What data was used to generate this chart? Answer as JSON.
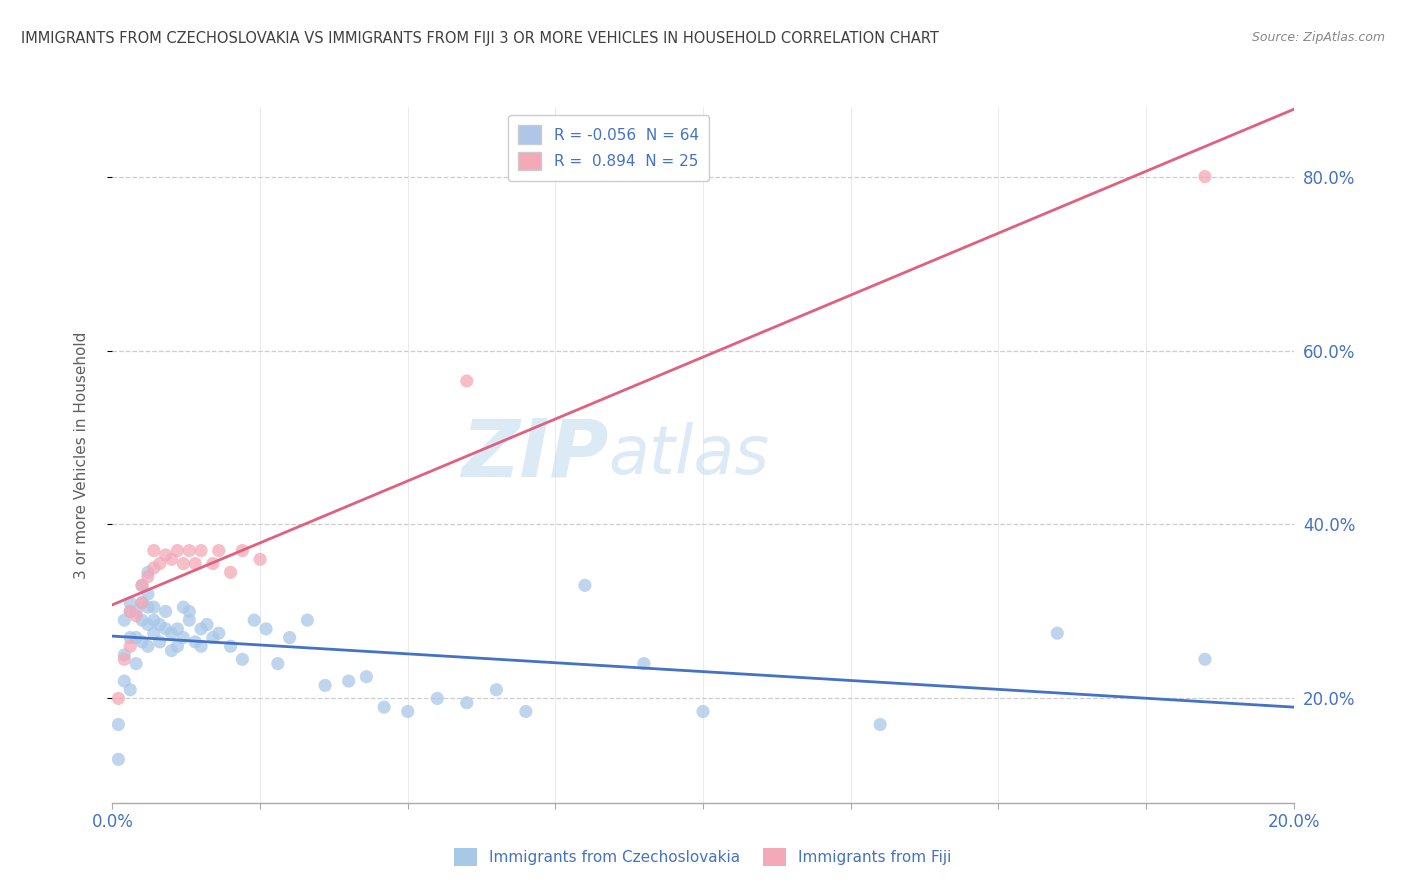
{
  "title": "IMMIGRANTS FROM CZECHOSLOVAKIA VS IMMIGRANTS FROM FIJI 3 OR MORE VEHICLES IN HOUSEHOLD CORRELATION CHART",
  "source": "Source: ZipAtlas.com",
  "ylabel": "3 or more Vehicles in Household",
  "xmin": 0.0,
  "xmax": 0.2,
  "ymin": 0.08,
  "ymax": 0.88,
  "yticks": [
    0.2,
    0.4,
    0.6,
    0.8
  ],
  "ytick_labels": [
    "20.0%",
    "40.0%",
    "60.0%",
    "80.0%"
  ],
  "xticks": [
    0.0,
    0.025,
    0.05,
    0.075,
    0.1,
    0.125,
    0.15,
    0.175,
    0.2
  ],
  "legend_entries": [
    {
      "label": "R = -0.056  N = 64",
      "color": "#aec6e8"
    },
    {
      "label": "R =  0.894  N = 25",
      "color": "#f4a9b8"
    }
  ],
  "dot_color_czechoslovakia": "#a8c8e8",
  "dot_color_fiji": "#f4a8b8",
  "line_color_czechoslovakia": "#4472c4",
  "line_color_fiji": "#e06080",
  "watermark_zip": "ZIP",
  "watermark_atlas": "atlas",
  "background_color": "#ffffff",
  "plot_bg_color": "#ffffff",
  "grid_color": "#c8c8c8",
  "title_color": "#404040",
  "axis_color": "#4472c4",
  "cz_x": [
    0.001,
    0.001,
    0.002,
    0.002,
    0.002,
    0.003,
    0.003,
    0.003,
    0.003,
    0.004,
    0.004,
    0.004,
    0.005,
    0.005,
    0.005,
    0.005,
    0.006,
    0.006,
    0.006,
    0.006,
    0.006,
    0.007,
    0.007,
    0.007,
    0.008,
    0.008,
    0.009,
    0.009,
    0.01,
    0.01,
    0.011,
    0.011,
    0.012,
    0.012,
    0.013,
    0.013,
    0.014,
    0.015,
    0.015,
    0.016,
    0.017,
    0.018,
    0.02,
    0.022,
    0.024,
    0.026,
    0.028,
    0.03,
    0.033,
    0.036,
    0.04,
    0.043,
    0.046,
    0.05,
    0.055,
    0.06,
    0.065,
    0.07,
    0.08,
    0.09,
    0.1,
    0.13,
    0.16,
    0.185
  ],
  "cz_y": [
    0.17,
    0.13,
    0.29,
    0.25,
    0.22,
    0.3,
    0.27,
    0.31,
    0.21,
    0.27,
    0.3,
    0.24,
    0.29,
    0.265,
    0.31,
    0.33,
    0.26,
    0.285,
    0.305,
    0.32,
    0.345,
    0.275,
    0.29,
    0.305,
    0.265,
    0.285,
    0.28,
    0.3,
    0.255,
    0.275,
    0.26,
    0.28,
    0.305,
    0.27,
    0.29,
    0.3,
    0.265,
    0.26,
    0.28,
    0.285,
    0.27,
    0.275,
    0.26,
    0.245,
    0.29,
    0.28,
    0.24,
    0.27,
    0.29,
    0.215,
    0.22,
    0.225,
    0.19,
    0.185,
    0.2,
    0.195,
    0.21,
    0.185,
    0.33,
    0.24,
    0.185,
    0.17,
    0.275,
    0.245
  ],
  "fiji_x": [
    0.001,
    0.002,
    0.003,
    0.003,
    0.004,
    0.005,
    0.005,
    0.006,
    0.007,
    0.007,
    0.008,
    0.009,
    0.01,
    0.011,
    0.012,
    0.013,
    0.014,
    0.015,
    0.017,
    0.018,
    0.02,
    0.022,
    0.025,
    0.06,
    0.185
  ],
  "fiji_y": [
    0.2,
    0.245,
    0.26,
    0.3,
    0.295,
    0.31,
    0.33,
    0.34,
    0.35,
    0.37,
    0.355,
    0.365,
    0.36,
    0.37,
    0.355,
    0.37,
    0.355,
    0.37,
    0.355,
    0.37,
    0.345,
    0.37,
    0.36,
    0.565,
    0.8
  ]
}
